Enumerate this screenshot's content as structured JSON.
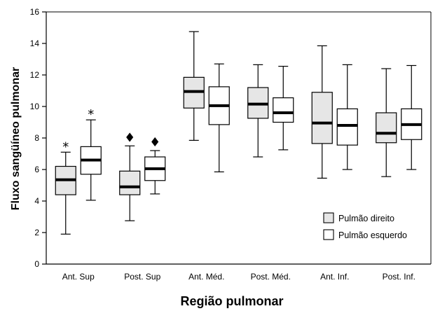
{
  "chart_data": {
    "type": "boxplot",
    "ylabel": "Fluxo sangüíneo pulmonar",
    "xlabel": "Região pulmonar",
    "ylim": [
      0,
      16
    ],
    "yticks": [
      0,
      2,
      4,
      6,
      8,
      10,
      12,
      14,
      16
    ],
    "categories": [
      "Ant. Sup",
      "Post. Sup",
      "Ant. Méd.",
      "Post. Méd.",
      "Ant. Inf.",
      "Post. Inf."
    ],
    "legend": {
      "placement": "bottom-right",
      "entries": [
        "Pulmão direito",
        "Pulmão esquerdo"
      ]
    },
    "series": [
      {
        "name": "Pulmão direito",
        "color": "#e6e6e6",
        "boxes": [
          {
            "min": 1.9,
            "q1": 4.4,
            "median": 5.35,
            "q3": 6.2,
            "max": 7.1,
            "marker": "*"
          },
          {
            "min": 2.75,
            "q1": 4.4,
            "median": 4.9,
            "q3": 5.9,
            "max": 7.5,
            "marker": "♦"
          },
          {
            "min": 7.85,
            "q1": 9.9,
            "median": 10.95,
            "q3": 11.85,
            "max": 14.75,
            "marker": ""
          },
          {
            "min": 6.8,
            "q1": 9.25,
            "median": 10.15,
            "q3": 11.2,
            "max": 12.65,
            "marker": ""
          },
          {
            "min": 5.45,
            "q1": 7.65,
            "median": 8.95,
            "q3": 10.9,
            "max": 13.85,
            "marker": ""
          },
          {
            "min": 5.55,
            "q1": 7.7,
            "median": 8.3,
            "q3": 9.6,
            "max": 12.4,
            "marker": ""
          }
        ]
      },
      {
        "name": "Pulmão esquerdo",
        "color": "#ffffff",
        "boxes": [
          {
            "min": 4.05,
            "q1": 5.7,
            "median": 6.6,
            "q3": 7.45,
            "max": 9.15,
            "marker": "*"
          },
          {
            "min": 4.45,
            "q1": 5.3,
            "median": 6.05,
            "q3": 6.8,
            "max": 7.2,
            "marker": "♦"
          },
          {
            "min": 5.85,
            "q1": 8.85,
            "median": 10.05,
            "q3": 11.25,
            "max": 12.7,
            "marker": ""
          },
          {
            "min": 7.25,
            "q1": 9.0,
            "median": 9.6,
            "q3": 10.55,
            "max": 12.55,
            "marker": ""
          },
          {
            "min": 6.0,
            "q1": 7.55,
            "median": 8.8,
            "q3": 9.85,
            "max": 12.65,
            "marker": ""
          },
          {
            "min": 6.0,
            "q1": 7.9,
            "median": 8.85,
            "q3": 9.85,
            "max": 12.6,
            "marker": ""
          }
        ]
      }
    ]
  }
}
